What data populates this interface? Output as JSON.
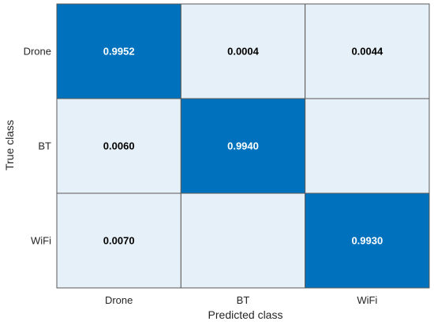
{
  "chart_data": {
    "type": "heatmap",
    "title": "",
    "xlabel": "Predicted class",
    "ylabel": "True class",
    "x_categories": [
      "Drone",
      "BT",
      "WiFi"
    ],
    "y_categories": [
      "Drone",
      "BT",
      "WiFi"
    ],
    "values": [
      [
        "0.9952",
        "0.0004",
        "0.0044"
      ],
      [
        "0.0060",
        "0.9940",
        ""
      ],
      [
        "0.0070",
        "",
        "0.9930"
      ]
    ],
    "colors": {
      "high": "#0072bd",
      "low": "#e6f0f8",
      "high_text": "#ffffff",
      "low_text": "#000000",
      "grid": "#595959"
    }
  }
}
